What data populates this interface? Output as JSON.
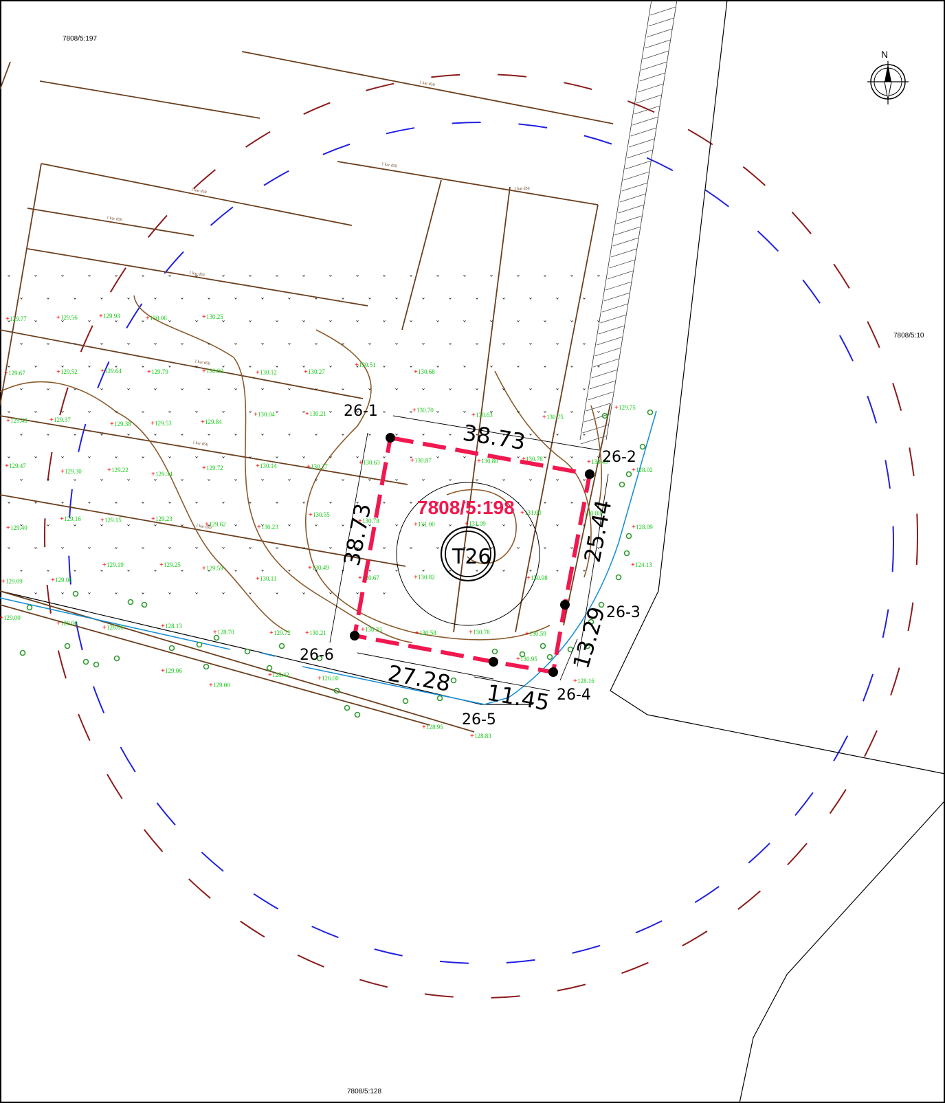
{
  "map": {
    "parcels": {
      "top_left": "7808/5:197",
      "right": "7808/5:10",
      "bottom": "7808/5:128"
    },
    "plot": {
      "title": "7808/5:198",
      "tower": "T26",
      "color": "#f0184f"
    },
    "dimensions": {
      "top": "38.73",
      "left": "38.73",
      "right": "25.44",
      "right_lower": "13.29",
      "bottom_left": "27.28",
      "bottom_right": "11.45"
    },
    "points": {
      "p1": "26-1",
      "p2": "26-2",
      "p3": "26-3",
      "p4": "26-4",
      "p5": "26-5",
      "p6": "26-6"
    },
    "north": "N",
    "pipe_label": "1 kar d50",
    "elevations": [
      "129.77",
      "129.56",
      "129.93",
      "130.06",
      "130.25",
      "129.67",
      "129.52",
      "129.64",
      "129.79",
      "130.00",
      "130.12",
      "130.27",
      "130.51",
      "130.68",
      "129.43",
      "129.37",
      "129.38",
      "129.53",
      "129.84",
      "130.04",
      "130.21",
      "130.70",
      "130.63",
      "130.75",
      "129.75",
      "129.47",
      "129.30",
      "129.22",
      "129.34",
      "129.72",
      "130.14",
      "130.37",
      "130.63",
      "130.87",
      "130.80",
      "130.78",
      "130.49",
      "128.02",
      "129.40",
      "129.16",
      "129.15",
      "129.23",
      "129.62",
      "130.23",
      "130.55",
      "130.78",
      "131.00",
      "131.09",
      "131.00",
      "130.88",
      "128.09",
      "129.09",
      "129.04",
      "129.19",
      "129.25",
      "129.59",
      "130.11",
      "130.49",
      "130.67",
      "130.82",
      "130.98",
      "124.13",
      "129.00",
      "128.00",
      "128.00",
      "128.13",
      "128.70",
      "129.72",
      "130.21",
      "130.33",
      "130.58",
      "130.78",
      "130.59",
      "129.06",
      "129.00",
      "128.42",
      "126.00",
      "130.95",
      "128.16",
      "128.95",
      "128.83"
    ],
    "colors": {
      "pipe": "#6b3f1e",
      "zone_outer": "#8b1a1a",
      "zone_inner": "#1f1fe0",
      "stream": "#1a8fd6",
      "elevation": "#12c912"
    }
  }
}
